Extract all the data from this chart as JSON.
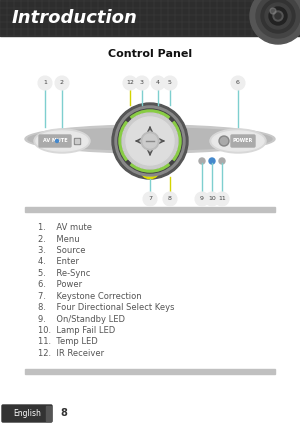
{
  "title": "Introduction",
  "subtitle": "Control Panel",
  "bg_color": "#ffffff",
  "header_bg": "#2d2d2d",
  "header_text_color": "#ffffff",
  "list_items": [
    "1.    AV mute",
    "2.    Menu",
    "3.    Source",
    "4.    Enter",
    "5.    Re-Sync",
    "6.    Power",
    "7.    Keystone Correction",
    "8.    Four Directional Select Keys",
    "9.    On/Standby LED",
    "10.  Lamp Fail LED",
    "11.  Temp LED",
    "12.  IR Receiver"
  ],
  "footer_text": "English",
  "page_number": "8",
  "sep_color": "#c0c0c0",
  "callout_color": "#aaaaaa",
  "stem_cyan": "#7ecfcf",
  "stem_yellow": "#d4d400"
}
